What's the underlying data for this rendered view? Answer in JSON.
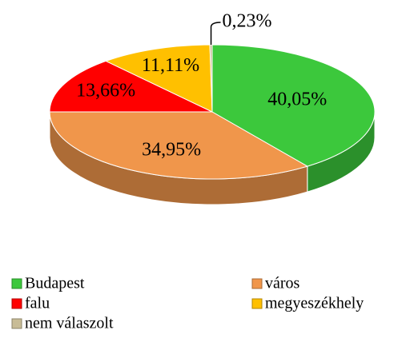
{
  "chart_data": {
    "type": "pie",
    "categories": [
      "Budapest",
      "város",
      "falu",
      "megyeszékhely",
      "nem válaszolt"
    ],
    "values": [
      40.05,
      34.95,
      13.66,
      11.11,
      0.23
    ],
    "value_labels": [
      "40,05%",
      "34,95%",
      "13,66%",
      "11,11%",
      "0,23%"
    ],
    "colors": [
      "#3cc83c",
      "#f0964b",
      "#ff0000",
      "#ffc000",
      "#c8bc96"
    ],
    "legend": "bottom"
  }
}
